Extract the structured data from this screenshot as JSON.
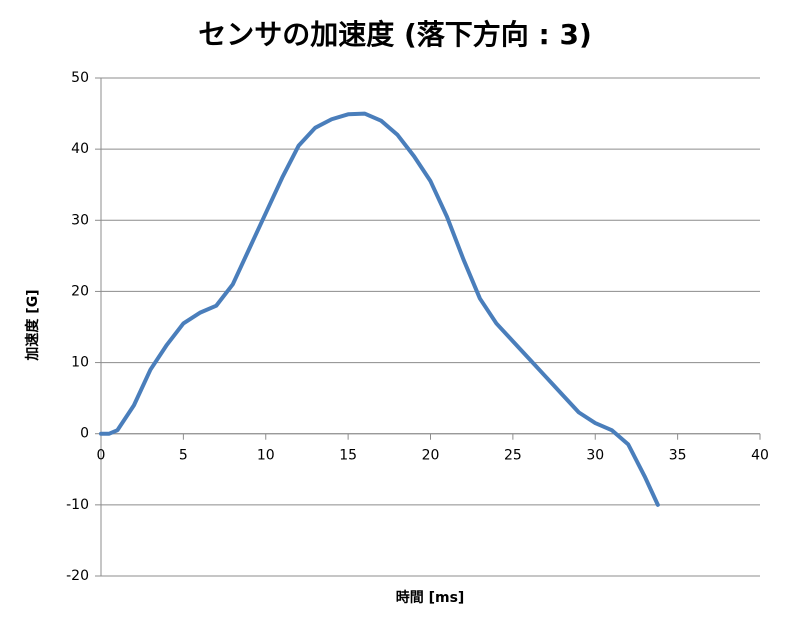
{
  "chart_data": {
    "type": "line",
    "title": "センサの加速度 (落下方向 : 3)",
    "x_label": "時間 [ms]",
    "y_label": "加速度 [G]",
    "x": [
      0,
      0.5,
      1,
      2,
      3,
      4,
      5,
      6,
      7,
      8,
      9,
      10,
      11,
      12,
      13,
      14,
      15,
      16,
      17,
      18,
      19,
      20,
      21,
      22,
      23,
      24,
      25,
      26,
      27,
      28,
      29,
      30,
      31,
      32,
      33,
      33.8
    ],
    "series": [
      {
        "name": "加速度",
        "color": "#4a7ebb",
        "values": [
          0,
          0,
          0.5,
          4,
          9,
          12.5,
          15.5,
          17,
          18,
          21,
          26,
          31,
          36,
          40.5,
          43,
          44.2,
          44.9,
          45,
          44,
          42,
          39,
          35.5,
          30.5,
          24.5,
          19,
          15.5,
          13,
          10.5,
          8,
          5.5,
          3,
          1.5,
          0.5,
          -1.5,
          -6,
          -10
        ]
      }
    ],
    "xlim": [
      0,
      40
    ],
    "xticks": [
      0,
      5,
      10,
      15,
      20,
      25,
      30,
      35,
      40
    ],
    "ylim": [
      -20,
      50
    ],
    "yticks": [
      -20,
      -10,
      0,
      10,
      20,
      30,
      40,
      50
    ],
    "grid": true
  }
}
